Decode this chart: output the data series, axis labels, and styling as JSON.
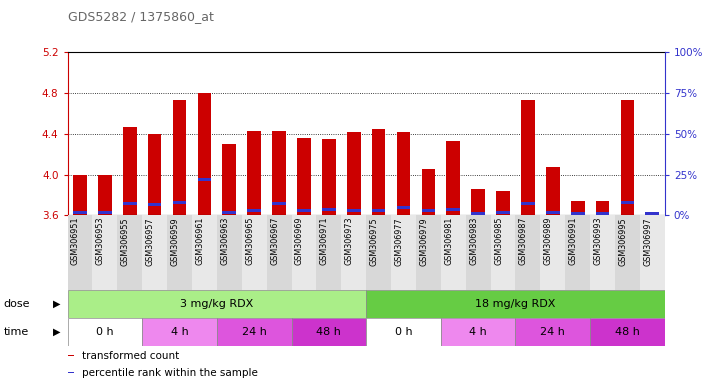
{
  "title": "GDS5282 / 1375860_at",
  "samples": [
    "GSM306951",
    "GSM306953",
    "GSM306955",
    "GSM306957",
    "GSM306959",
    "GSM306961",
    "GSM306963",
    "GSM306965",
    "GSM306967",
    "GSM306969",
    "GSM306971",
    "GSM306973",
    "GSM306975",
    "GSM306977",
    "GSM306979",
    "GSM306981",
    "GSM306983",
    "GSM306985",
    "GSM306987",
    "GSM306989",
    "GSM306991",
    "GSM306993",
    "GSM306995",
    "GSM306997"
  ],
  "red_values": [
    4.0,
    4.0,
    4.47,
    4.4,
    4.73,
    4.8,
    4.3,
    4.43,
    4.43,
    4.36,
    4.35,
    4.42,
    4.45,
    4.42,
    4.06,
    4.33,
    3.86,
    3.84,
    4.73,
    4.07,
    3.74,
    3.74,
    4.73,
    3.62
  ],
  "blue_values": [
    3.63,
    3.63,
    3.72,
    3.71,
    3.73,
    3.95,
    3.63,
    3.65,
    3.72,
    3.65,
    3.66,
    3.65,
    3.65,
    3.68,
    3.65,
    3.66,
    3.62,
    3.63,
    3.72,
    3.63,
    3.62,
    3.62,
    3.73,
    3.62
  ],
  "ymin": 3.6,
  "ymax": 5.2,
  "yticks": [
    3.6,
    4.0,
    4.4,
    4.8,
    5.2
  ],
  "right_yticks": [
    0,
    25,
    50,
    75,
    100
  ],
  "bar_color": "#cc0000",
  "blue_color": "#3333cc",
  "dose_groups": [
    {
      "label": "3 mg/kg RDX",
      "start": 0,
      "end": 12,
      "color": "#aaee88"
    },
    {
      "label": "18 mg/kg RDX",
      "start": 12,
      "end": 24,
      "color": "#66cc44"
    }
  ],
  "time_colors": [
    "#ffffff",
    "#ee88ee",
    "#dd55dd",
    "#cc33cc",
    "#ffffff",
    "#ee88ee",
    "#dd55dd",
    "#cc33cc"
  ],
  "time_groups": [
    {
      "label": "0 h",
      "start": 0,
      "end": 3
    },
    {
      "label": "4 h",
      "start": 3,
      "end": 6
    },
    {
      "label": "24 h",
      "start": 6,
      "end": 9
    },
    {
      "label": "48 h",
      "start": 9,
      "end": 12
    },
    {
      "label": "0 h",
      "start": 12,
      "end": 15
    },
    {
      "label": "4 h",
      "start": 15,
      "end": 18
    },
    {
      "label": "24 h",
      "start": 18,
      "end": 21
    },
    {
      "label": "48 h",
      "start": 21,
      "end": 24
    }
  ],
  "legend_items": [
    {
      "label": "transformed count",
      "color": "#cc0000"
    },
    {
      "label": "percentile rank within the sample",
      "color": "#3333cc"
    }
  ],
  "title_color": "#666666",
  "left_axis_color": "#cc0000",
  "right_axis_color": "#3333cc",
  "bg_colors": [
    "#d8d8d8",
    "#e8e8e8"
  ]
}
